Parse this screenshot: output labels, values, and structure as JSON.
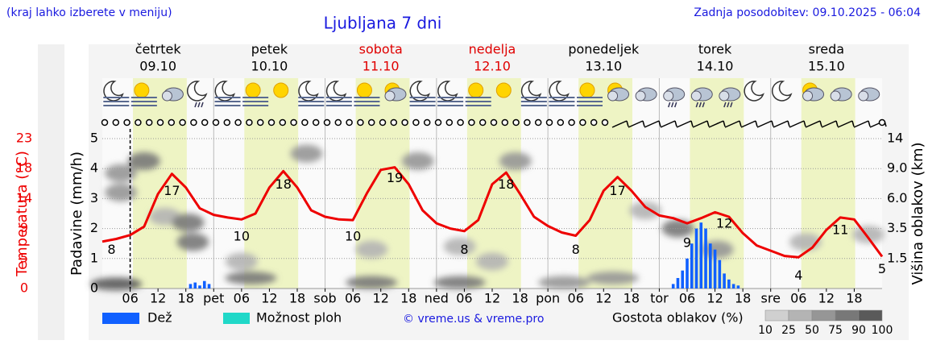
{
  "header": {
    "note": "(kraj lahko izberete v meniju)",
    "title": "Ljubljana 7 dni",
    "updated": "Zadnja posodobitev: 09.10.2025 - 06:04"
  },
  "chart_data": {
    "type": "meteogram",
    "days": [
      {
        "name": "četrtek",
        "date": "09.10",
        "color": "#000000"
      },
      {
        "name": "petek",
        "date": "10.10",
        "color": "#000000"
      },
      {
        "name": "sobota",
        "date": "11.10",
        "color": "#e00000"
      },
      {
        "name": "nedelja",
        "date": "12.10",
        "color": "#e00000"
      },
      {
        "name": "ponedeljek",
        "date": "13.10",
        "color": "#000000"
      },
      {
        "name": "torek",
        "date": "14.10",
        "color": "#000000"
      },
      {
        "name": "sreda",
        "date": "15.10",
        "color": "#000000"
      }
    ],
    "xlim": [
      0,
      168
    ],
    "xticks": [
      {
        "value": 6,
        "label": "06"
      },
      12,
      18,
      {
        "value": 24,
        "label": "pet"
      },
      {
        "value": 30,
        "label": "06"
      },
      {
        "value": 36,
        "label": "12"
      },
      {
        "value": 42,
        "label": "18"
      },
      {
        "value": 48,
        "label": "sob"
      },
      {
        "value": 54,
        "label": "06"
      },
      {
        "value": 60,
        "label": "12"
      },
      {
        "value": 66,
        "label": "18"
      },
      {
        "value": 72,
        "label": "ned"
      },
      {
        "value": 78,
        "label": "06"
      },
      {
        "value": 84,
        "label": "12"
      },
      {
        "value": 90,
        "label": "18"
      },
      {
        "value": 96,
        "label": "pon"
      },
      {
        "value": 102,
        "label": "06"
      },
      {
        "value": 108,
        "label": "12"
      },
      {
        "value": 114,
        "label": "18"
      },
      {
        "value": 120,
        "label": "tor"
      },
      {
        "value": 126,
        "label": "06"
      },
      {
        "value": 132,
        "label": "12"
      },
      {
        "value": 138,
        "label": "18"
      },
      {
        "value": 144,
        "label": "sre"
      },
      {
        "value": 150,
        "label": "06"
      },
      {
        "value": 156,
        "label": "12"
      },
      {
        "value": 162,
        "label": "18"
      }
    ],
    "now": 6,
    "daylight": [
      6.6,
      18.2
    ],
    "ylabel": "Padavine (mm/h)",
    "ylim": [
      0,
      5
    ],
    "yticks": [
      0,
      1,
      2,
      3,
      4,
      5
    ],
    "grid": true,
    "temp_label": "Temperatura (°C)",
    "temp_lim": [
      0,
      23
    ],
    "temp_ticks": [
      0,
      {
        "value": 4.6,
        "label": "5"
      },
      {
        "value": 9.2,
        "label": "9"
      },
      {
        "value": 13.8,
        "label": "14"
      },
      {
        "value": 18.4,
        "label": "18"
      },
      23
    ],
    "temp_color": "#ee0000",
    "y2label": "Višina oblakov (km)",
    "y2ticks": [
      1.5,
      3.5,
      {
        "value": 6,
        "label": "6.0"
      },
      {
        "value": 9,
        "label": "9.0"
      },
      14
    ],
    "temperature": {
      "x": [
        0,
        3,
        6,
        9,
        12,
        15,
        18,
        21,
        24,
        27,
        30,
        33,
        36,
        39,
        42,
        45,
        48,
        51,
        54,
        57,
        60,
        63,
        66,
        69,
        72,
        75,
        78,
        81,
        84,
        87,
        90,
        93,
        96,
        99,
        102,
        105,
        108,
        111,
        114,
        117,
        120,
        123,
        126,
        129,
        132,
        135,
        138,
        141,
        144,
        147,
        150,
        153,
        156,
        159,
        162,
        165,
        168
      ],
      "values": [
        7.2,
        7.6,
        8.2,
        9.5,
        14.5,
        17.6,
        15.5,
        12.3,
        11.3,
        10.9,
        10.6,
        11.5,
        15.5,
        18,
        15.5,
        12,
        11,
        10.6,
        10.5,
        14.6,
        18.2,
        18.6,
        16,
        12,
        10,
        9.2,
        8.8,
        10.5,
        16,
        17.8,
        14.5,
        11,
        9.6,
        8.6,
        8.1,
        10.5,
        15,
        17.1,
        15,
        12.5,
        11.2,
        10.8,
        10,
        10.8,
        11.7,
        11,
        8.5,
        6.6,
        5.8,
        5,
        4.8,
        6.3,
        9,
        10.9,
        10.6,
        7.8,
        4.9
      ]
    },
    "extremes": {
      "x": [
        2,
        15,
        30,
        39,
        54,
        63,
        78,
        87,
        102,
        111,
        126,
        134,
        150,
        159,
        168
      ],
      "values": [
        8,
        17,
        10,
        18,
        10,
        19,
        8,
        18,
        8,
        17,
        9,
        12,
        4,
        11,
        5
      ]
    },
    "series": [
      {
        "name": "Dež",
        "color": "#1060ff",
        "x": [
          19,
          20,
          21,
          22,
          23,
          123,
          124,
          125,
          126,
          127,
          128,
          129,
          130,
          131,
          132,
          133,
          134,
          135,
          136,
          137
        ],
        "values": [
          0.15,
          0.2,
          0.1,
          0.25,
          0.15,
          0.15,
          0.35,
          0.6,
          1.0,
          1.5,
          2.0,
          2.2,
          2.0,
          1.5,
          1.3,
          0.95,
          0.5,
          0.3,
          0.15,
          0.1
        ]
      },
      {
        "name": "Možnost ploh",
        "color": "#20d8c8",
        "x": [],
        "values": []
      }
    ],
    "clouds": {
      "x": [
        4,
        4,
        9,
        13.5,
        18.5,
        19.5,
        44,
        30,
        58,
        89,
        68,
        124,
        117,
        132.5,
        151.5,
        165,
        3,
        32,
        58,
        77,
        99.5,
        110,
        84,
        77
      ],
      "y": [
        3.85,
        3.2,
        4.25,
        2.4,
        2.2,
        1.55,
        4.5,
        0.9,
        1.3,
        4.25,
        4.25,
        2.0,
        2.6,
        1.3,
        1.55,
        1.8,
        0.15,
        0.35,
        0.2,
        0.2,
        0.2,
        0.35,
        0.9,
        1.4
      ],
      "density": [
        60,
        70,
        75,
        40,
        85,
        75,
        50,
        25,
        30,
        70,
        50,
        75,
        40,
        70,
        45,
        30,
        90,
        85,
        80,
        75,
        70,
        60,
        25,
        40
      ]
    },
    "cloud_legend": {
      "label": "Gostota oblakov (%)",
      "ticks": [
        10,
        25,
        50,
        75,
        90,
        100
      ],
      "colors": [
        "#d0d0d0",
        "#b4b4b4",
        "#969696",
        "#787878",
        "#5a5a5a"
      ]
    },
    "credit": "© vreme.us & vreme.pro"
  }
}
